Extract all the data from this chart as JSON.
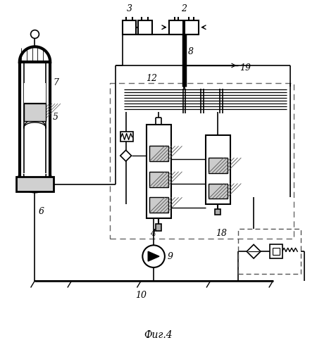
{
  "title": "Фиг.4",
  "bg_color": "#ffffff",
  "line_color": "#000000",
  "figure_size": [
    4.5,
    5.0
  ],
  "dpi": 100
}
